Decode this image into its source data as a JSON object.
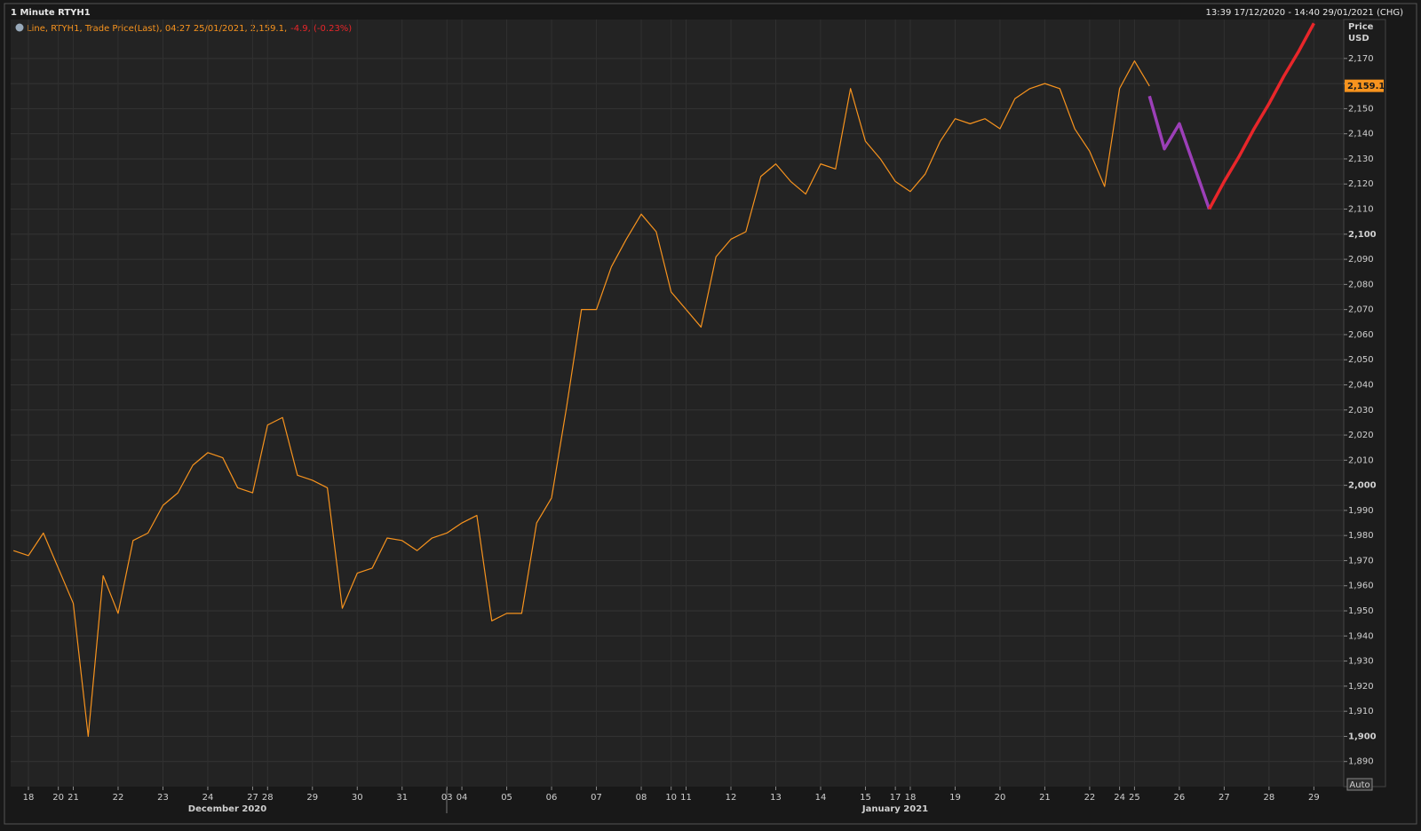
{
  "header": {
    "title": "1 Minute RTYH1",
    "range": "13:39 17/12/2020 - 14:40 29/01/2021 (CHG)"
  },
  "chart_data": {
    "type": "line",
    "legend": {
      "text": "Line, RTYH1, Trade Price(Last), 04:27 25/01/2021, 2,159.1,",
      "change": "-4.9, (-0.23%)"
    },
    "y_axis_title": [
      "Price",
      "USD"
    ],
    "last_price": {
      "value": 2159.1,
      "label": "2,159.1"
    },
    "auto_button": "Auto",
    "x_groups": [
      "December 2020",
      "January 2021"
    ],
    "categories": [
      null,
      "18",
      null,
      "20",
      "21",
      null,
      null,
      "22",
      null,
      null,
      "23",
      null,
      null,
      "24",
      null,
      null,
      "27",
      "28",
      null,
      null,
      "29",
      null,
      null,
      "30",
      null,
      null,
      "31",
      null,
      null,
      "03",
      "04",
      null,
      null,
      "05",
      null,
      null,
      "06",
      null,
      null,
      "07",
      null,
      null,
      "08",
      null,
      "10",
      "11",
      null,
      null,
      "12",
      null,
      null,
      "13",
      null,
      null,
      "14",
      null,
      null,
      "15",
      null,
      "17",
      "18",
      null,
      null,
      "19",
      null,
      null,
      "20",
      null,
      null,
      "21",
      null,
      null,
      "22",
      null,
      "24",
      "25",
      null,
      null,
      "26",
      null,
      null,
      "27",
      null,
      null,
      "28",
      null,
      null,
      "29"
    ],
    "series": [
      {
        "name": "RTYH1",
        "color": "#f7931e",
        "width": 1.2,
        "values": [
          1974,
          1972,
          1981,
          1967,
          1953,
          1900,
          1964,
          1949,
          1978,
          1981,
          1992,
          1997,
          2008,
          2013,
          2011,
          1999,
          1997,
          2024,
          2027,
          2004,
          2002,
          1999,
          1951,
          1965,
          1967,
          1979,
          1978,
          1974,
          1979,
          1981,
          1985,
          1988,
          1946,
          1949,
          1949,
          1985,
          1995,
          2031,
          2070,
          2070,
          2087,
          2098,
          2108,
          2101,
          2077,
          2070,
          2063,
          2091,
          2098,
          2101,
          2123,
          2128,
          2121,
          2116,
          2128,
          2126,
          2158,
          2137,
          2130,
          2121,
          2117,
          2124,
          2137,
          2146,
          2144,
          2146,
          2142,
          2154,
          2158,
          2160,
          2158,
          2142,
          2133,
          2119,
          2158,
          2169,
          2159,
          null,
          null,
          null,
          null,
          null,
          null,
          null,
          null,
          null,
          null,
          null
        ]
      },
      {
        "color": "#9c3fb8",
        "width": 3.5,
        "values": [
          null,
          null,
          null,
          null,
          null,
          null,
          null,
          null,
          null,
          null,
          null,
          null,
          null,
          null,
          null,
          null,
          null,
          null,
          null,
          null,
          null,
          null,
          null,
          null,
          null,
          null,
          null,
          null,
          null,
          null,
          null,
          null,
          null,
          null,
          null,
          null,
          null,
          null,
          null,
          null,
          null,
          null,
          null,
          null,
          null,
          null,
          null,
          null,
          null,
          null,
          null,
          null,
          null,
          null,
          null,
          null,
          null,
          null,
          null,
          null,
          null,
          null,
          null,
          null,
          null,
          null,
          null,
          null,
          null,
          null,
          null,
          null,
          null,
          null,
          null,
          null,
          2155,
          2134,
          2144,
          2127,
          2110,
          null,
          null,
          null,
          null,
          null,
          null,
          null
        ]
      },
      {
        "color": "#e8262a",
        "width": 3.5,
        "values": [
          null,
          null,
          null,
          null,
          null,
          null,
          null,
          null,
          null,
          null,
          null,
          null,
          null,
          null,
          null,
          null,
          null,
          null,
          null,
          null,
          null,
          null,
          null,
          null,
          null,
          null,
          null,
          null,
          null,
          null,
          null,
          null,
          null,
          null,
          null,
          null,
          null,
          null,
          null,
          null,
          null,
          null,
          null,
          null,
          null,
          null,
          null,
          null,
          null,
          null,
          null,
          null,
          null,
          null,
          null,
          null,
          null,
          null,
          null,
          null,
          null,
          null,
          null,
          null,
          null,
          null,
          null,
          null,
          null,
          null,
          null,
          null,
          null,
          null,
          null,
          null,
          null,
          null,
          null,
          null,
          2110,
          2121,
          2131,
          2142,
          2152,
          2163,
          2173,
          2184
        ]
      }
    ],
    "ylim": [
      1880,
      2185.5
    ],
    "yticks": [
      {
        "value": 1890,
        "label": "1,890"
      },
      {
        "value": 1900,
        "label": "1,900"
      },
      {
        "value": 1910,
        "label": "1,910"
      },
      {
        "value": 1920,
        "label": "1,920"
      },
      {
        "value": 1930,
        "label": "1,930"
      },
      {
        "value": 1940,
        "label": "1,940"
      },
      {
        "value": 1950,
        "label": "1,950"
      },
      {
        "value": 1960,
        "label": "1,960"
      },
      {
        "value": 1970,
        "label": "1,970"
      },
      {
        "value": 1980,
        "label": "1,980"
      },
      {
        "value": 1990,
        "label": "1,990"
      },
      {
        "value": 2000,
        "label": "2,000"
      },
      {
        "value": 2010,
        "label": "2,010"
      },
      {
        "value": 2020,
        "label": "2,020"
      },
      {
        "value": 2030,
        "label": "2,030"
      },
      {
        "value": 2040,
        "label": "2,040"
      },
      {
        "value": 2050,
        "label": "2,050"
      },
      {
        "value": 2060,
        "label": "2,060"
      },
      {
        "value": 2070,
        "label": "2,070"
      },
      {
        "value": 2080,
        "label": "2,080"
      },
      {
        "value": 2090,
        "label": "2,090"
      },
      {
        "value": 2100,
        "label": "2,100"
      },
      {
        "value": 2110,
        "label": "2,110"
      },
      {
        "value": 2120,
        "label": "2,120"
      },
      {
        "value": 2130,
        "label": "2,130"
      },
      {
        "value": 2140,
        "label": "2,140"
      },
      {
        "value": 2150,
        "label": "2,150"
      },
      {
        "value": 2160,
        "label": "2,160"
      },
      {
        "value": 2170,
        "label": "2,170"
      }
    ],
    "grid": true
  }
}
